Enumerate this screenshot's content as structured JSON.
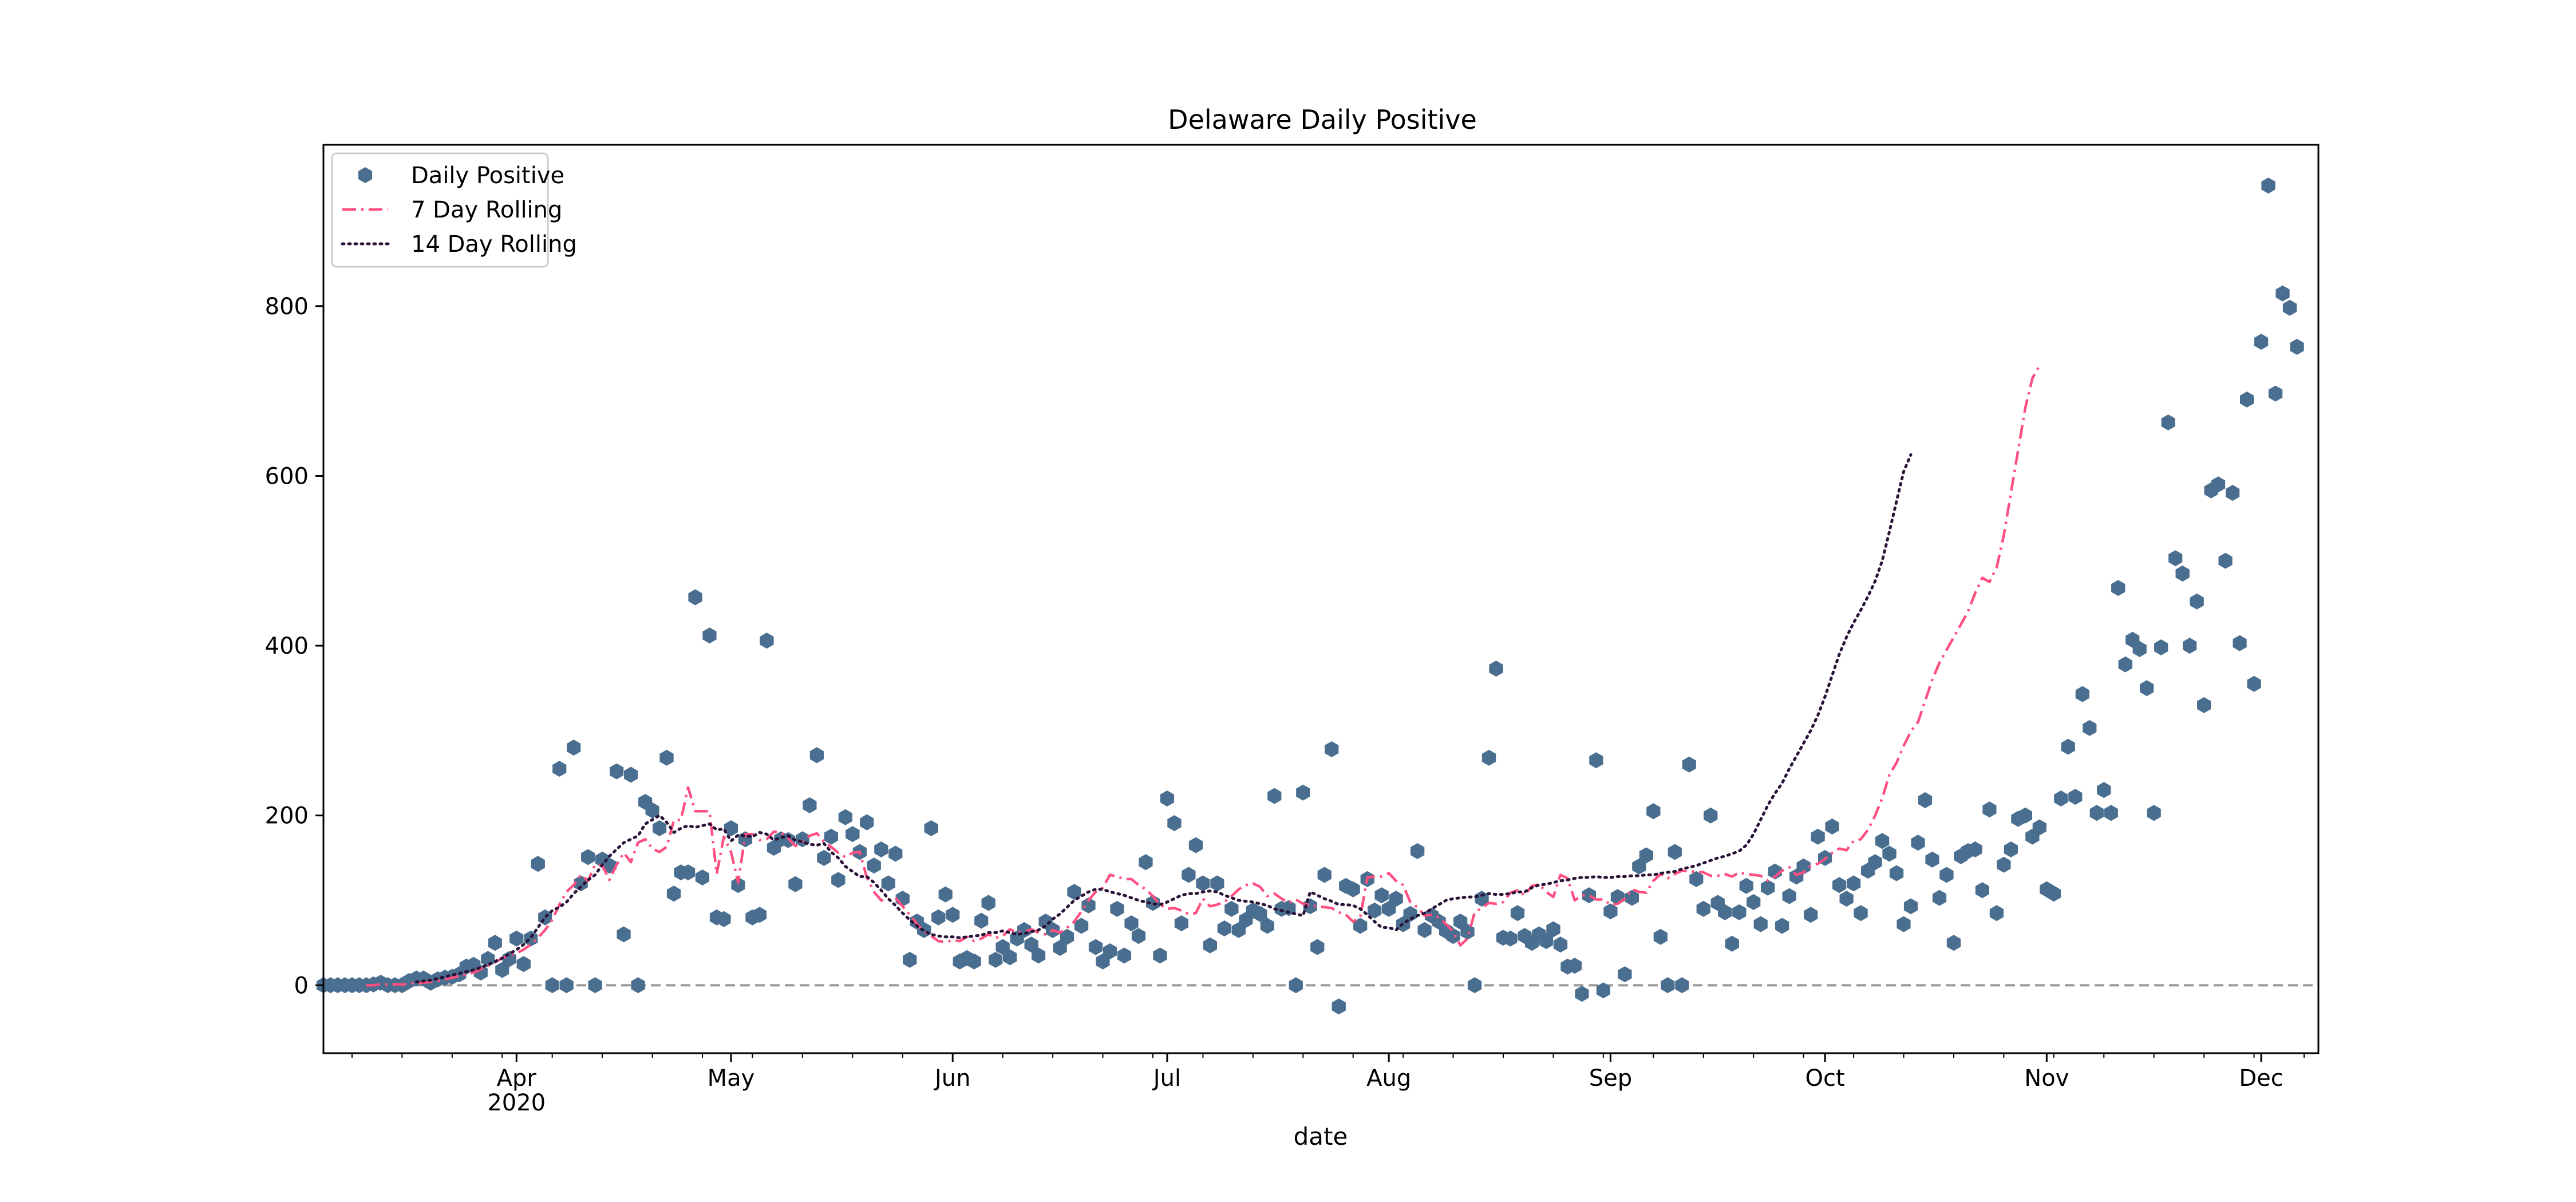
{
  "chart_data": {
    "type": "scatter",
    "title": "Delaware Daily Positive",
    "xlabel": "date",
    "ylabel": "",
    "xlim": [
      "2020-03-05",
      "2020-12-09"
    ],
    "ylim": [
      -80,
      990
    ],
    "grid": false,
    "legend_position": "top-left",
    "x_ticks": [
      {
        "date": "2020-04-01",
        "label": "Apr",
        "sublabel": "2020"
      },
      {
        "date": "2020-05-01",
        "label": "May",
        "sublabel": ""
      },
      {
        "date": "2020-06-01",
        "label": "Jun",
        "sublabel": ""
      },
      {
        "date": "2020-07-01",
        "label": "Jul",
        "sublabel": ""
      },
      {
        "date": "2020-08-01",
        "label": "Aug",
        "sublabel": ""
      },
      {
        "date": "2020-09-01",
        "label": "Sep",
        "sublabel": ""
      },
      {
        "date": "2020-10-01",
        "label": "Oct",
        "sublabel": ""
      },
      {
        "date": "2020-11-01",
        "label": "Nov",
        "sublabel": ""
      },
      {
        "date": "2020-12-01",
        "label": "Dec",
        "sublabel": ""
      }
    ],
    "y_ticks": [
      0,
      200,
      400,
      600,
      800
    ],
    "reference_line": {
      "y": 0,
      "color": "#999999",
      "style": "dashed"
    },
    "start_date": "2020-03-05",
    "series": [
      {
        "name": "Daily Positive",
        "kind": "points",
        "marker": "hexagon",
        "color": "#4a6e8f",
        "values": [
          0,
          0,
          0,
          0,
          0,
          0,
          0,
          1,
          3,
          0,
          0,
          0,
          5,
          8,
          8,
          3,
          7,
          9,
          10,
          13,
          22,
          24,
          15,
          31,
          50,
          18,
          31,
          55,
          25,
          55,
          143,
          80,
          0,
          255,
          0,
          280,
          120,
          151,
          0,
          148,
          141,
          252,
          60,
          248,
          0,
          216,
          206,
          185,
          268,
          108,
          133,
          133,
          457,
          127,
          412,
          80,
          78,
          185,
          118,
          172,
          80,
          83,
          406,
          162,
          172,
          171,
          119,
          172,
          212,
          271,
          150,
          175,
          124,
          198,
          178,
          157,
          192,
          141,
          160,
          120,
          155,
          102,
          30,
          75,
          65,
          185,
          80,
          107,
          83,
          28,
          32,
          28,
          76,
          97,
          30,
          45,
          33,
          55,
          65,
          48,
          35,
          75,
          65,
          44,
          57,
          110,
          70,
          94,
          45,
          28,
          40,
          90,
          35,
          73,
          58,
          145,
          97,
          35,
          220,
          191,
          73,
          130,
          165,
          120,
          47,
          120,
          67,
          90,
          65,
          77,
          88,
          84,
          70,
          223,
          90,
          91,
          0,
          227,
          93,
          45,
          130,
          278,
          -25,
          117,
          113,
          70,
          125,
          88,
          106,
          90,
          102,
          72,
          84,
          158,
          65,
          82,
          75,
          64,
          58,
          75,
          63,
          0,
          102,
          268,
          373,
          56,
          55,
          85,
          58,
          50,
          60,
          52,
          66,
          48,
          22,
          23,
          -10,
          106,
          265,
          -6,
          87,
          104,
          13,
          103,
          140,
          153,
          205,
          57,
          0,
          157,
          0,
          260,
          125,
          90,
          200,
          97,
          86,
          49,
          86,
          117,
          98,
          72,
          115,
          134,
          70,
          105,
          128,
          140,
          83,
          175,
          150,
          187,
          118,
          102,
          120,
          85,
          135,
          145,
          170,
          155,
          132,
          72,
          93,
          168,
          218,
          148,
          103,
          130,
          50,
          152,
          158,
          160,
          112,
          207,
          85,
          142,
          160,
          196,
          200,
          175,
          186,
          113,
          108,
          220,
          281,
          222,
          343,
          303,
          203,
          230,
          203,
          468,
          378,
          407,
          396,
          350,
          203,
          398,
          663,
          503,
          485,
          400,
          452,
          330,
          583,
          590,
          500,
          580,
          403,
          690,
          355,
          758,
          942,
          697,
          815,
          798,
          752
        ]
      },
      {
        "name": "7 Day Rolling",
        "kind": "line",
        "style": "dashdot",
        "color": "#ff4f81",
        "start_index": 6,
        "values": [
          0,
          0,
          1,
          1,
          1,
          1,
          2,
          3,
          3,
          4,
          5,
          7,
          9,
          11,
          13,
          15,
          19,
          23,
          27,
          32,
          35,
          38,
          42,
          48,
          56,
          65,
          77,
          95,
          110,
          118,
          130,
          123,
          142,
          141,
          124,
          142,
          156,
          145,
          168,
          172,
          161,
          157,
          163,
          194,
          195,
          233,
          205,
          205,
          205,
          131,
          175,
          157,
          121,
          178,
          178,
          171,
          172,
          181,
          180,
          173,
          164,
          170,
          176,
          179,
          169,
          163,
          156,
          151,
          156,
          157,
          127,
          110,
          100,
          100,
          103,
          93,
          83,
          72,
          63,
          58,
          52,
          51,
          53,
          52,
          57,
          52,
          55,
          60,
          56,
          58,
          66,
          62,
          63,
          66,
          62,
          60,
          65,
          62,
          68,
          75,
          87,
          100,
          110,
          115,
          130,
          128,
          125,
          125,
          118,
          113,
          105,
          95,
          90,
          91,
          88,
          84,
          85,
          102,
          93,
          95,
          98,
          105,
          113,
          118,
          120,
          116,
          105,
          108,
          102,
          97,
          101,
          96,
          94,
          93,
          92,
          91,
          86,
          83,
          75,
          80,
          127,
          128,
          128,
          132,
          123,
          118,
          98,
          92,
          82,
          83,
          80,
          72,
          63,
          47,
          55,
          86,
          91,
          97,
          96,
          98,
          109,
          112,
          106,
          117,
          119,
          110,
          104,
          130,
          126,
          100,
          106,
          106,
          101,
          101,
          95,
          96,
          102,
          113,
          110,
          109,
          123,
          131,
          126,
          131,
          135,
          134,
          134,
          133,
          129,
          129,
          131,
          128,
          133,
          131,
          130,
          129,
          123,
          128,
          135,
          139,
          130,
          133,
          141,
          143,
          149,
          156,
          161,
          159,
          170,
          172,
          183,
          200,
          220,
          248,
          262,
          282,
          299,
          310,
          335,
          360,
          380,
          395,
          410,
          425,
          440,
          462,
          480,
          475,
          492,
          530,
          580,
          630,
          680,
          715,
          730
        ]
      },
      {
        "name": "14 Day Rolling",
        "kind": "line",
        "style": "dotted",
        "color": "#2a1338",
        "start_index": 13,
        "values": [
          4,
          5,
          6,
          8,
          10,
          12,
          14,
          16,
          18,
          21,
          24,
          28,
          32,
          37,
          42,
          48,
          56,
          68,
          80,
          88,
          92,
          98,
          108,
          116,
          124,
          130,
          142,
          152,
          160,
          168,
          172,
          176,
          190,
          195,
          200,
          192,
          180,
          185,
          188,
          186,
          188,
          190,
          183,
          184,
          170,
          177,
          176,
          175,
          180,
          178,
          171,
          174,
          176,
          171,
          169,
          166,
          165,
          167,
          157,
          150,
          140,
          134,
          128,
          128,
          121,
          112,
          102,
          94,
          85,
          77,
          70,
          64,
          60,
          58,
          57,
          57,
          56,
          57,
          58,
          59,
          62,
          62,
          64,
          62,
          60,
          61,
          63,
          65,
          70,
          78,
          84,
          92,
          100,
          105,
          110,
          113,
          113,
          110,
          108,
          106,
          103,
          100,
          98,
          96,
          95,
          98,
          102,
          106,
          108,
          108,
          110,
          111,
          110,
          106,
          103,
          100,
          99,
          98,
          96,
          94,
          90,
          88,
          86,
          84,
          82,
          110,
          106,
          102,
          99,
          95,
          95,
          94,
          90,
          83,
          75,
          68,
          68,
          65,
          73,
          78,
          82,
          85,
          90,
          95,
          100,
          102,
          103,
          104,
          104,
          106,
          108,
          107,
          107,
          108,
          110,
          110,
          115,
          118,
          119,
          121,
          123,
          124,
          126,
          127,
          127,
          128,
          127,
          127,
          128,
          128,
          129,
          129,
          130,
          130,
          132,
          133,
          134,
          137,
          139,
          141,
          144,
          147,
          150,
          152,
          155,
          158,
          165,
          178,
          195,
          212,
          226,
          238,
          255,
          270,
          285,
          300,
          318,
          340,
          365,
          390,
          410,
          427,
          442,
          458,
          476,
          500,
          534,
          570,
          605,
          625
        ]
      }
    ]
  }
}
